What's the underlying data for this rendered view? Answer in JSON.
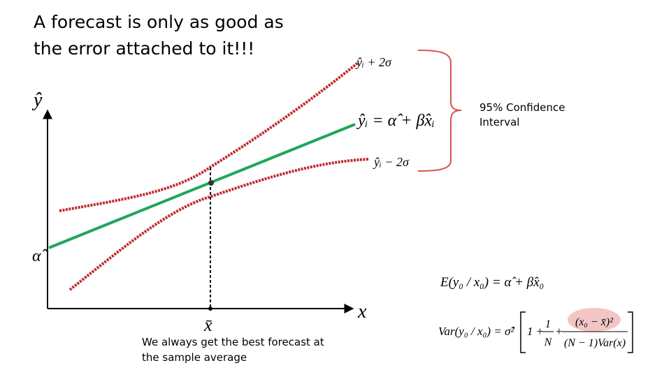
{
  "title": {
    "lines": [
      "A forecast is only as good as",
      "the error attached to it!!!"
    ]
  },
  "axes": {
    "y_label": "ŷ",
    "x_label": "x",
    "intercept_label": "α̂",
    "mean_label": "x̄"
  },
  "curves": {
    "upper": "ŷᵢ + 2σ",
    "middle": "ŷᵢ = α̂ + β̂xᵢ",
    "lower": "ŷᵢ − 2σ"
  },
  "interval": {
    "lines": [
      "95% Confidence",
      "Interval"
    ]
  },
  "caption": {
    "lines": [
      "We always get the best forecast at",
      "the sample average"
    ]
  },
  "formulas": {
    "expectation": "E(y₀ / x₀) = α̂ + β̂x₀",
    "variance": {
      "lhs": "Var(y₀ / x₀) = σ̂²",
      "one_plus": "1 +",
      "frac1_num": "1",
      "frac1_den": "N",
      "plus": "+",
      "frac2_num": "(x₀ − x̄)²",
      "frac2_den": "(N − 1)Var(x)"
    }
  }
}
